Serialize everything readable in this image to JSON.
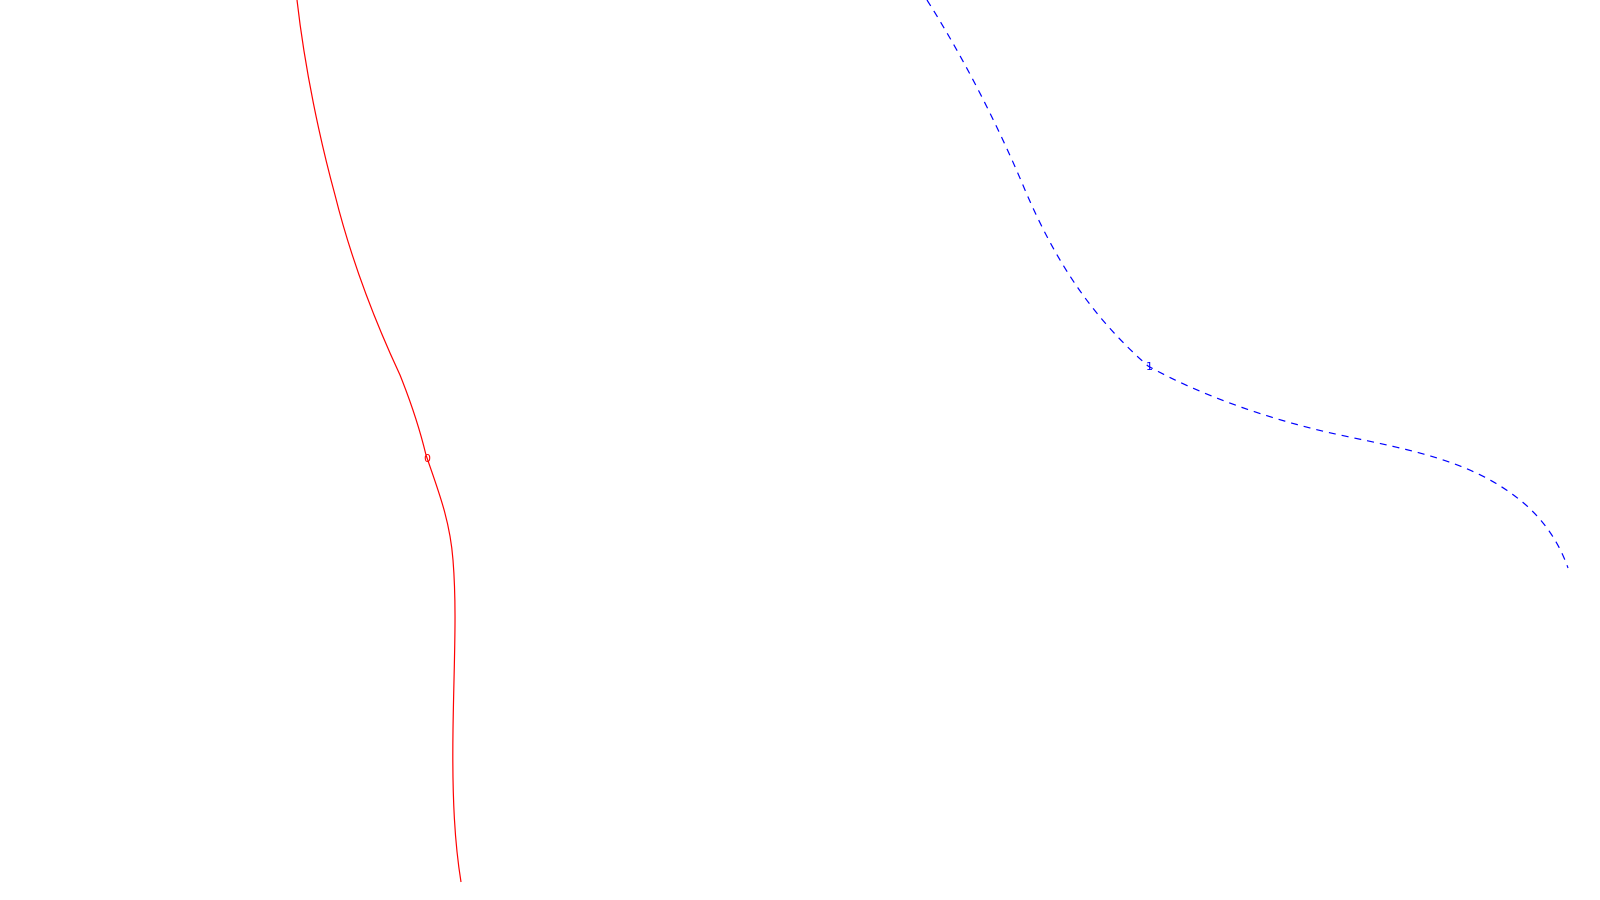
{
  "curves": [
    {
      "label": "0",
      "color": "#ff0000",
      "style": "solid"
    },
    {
      "label": "1",
      "color": "#0000ff",
      "style": "dashed"
    }
  ]
}
